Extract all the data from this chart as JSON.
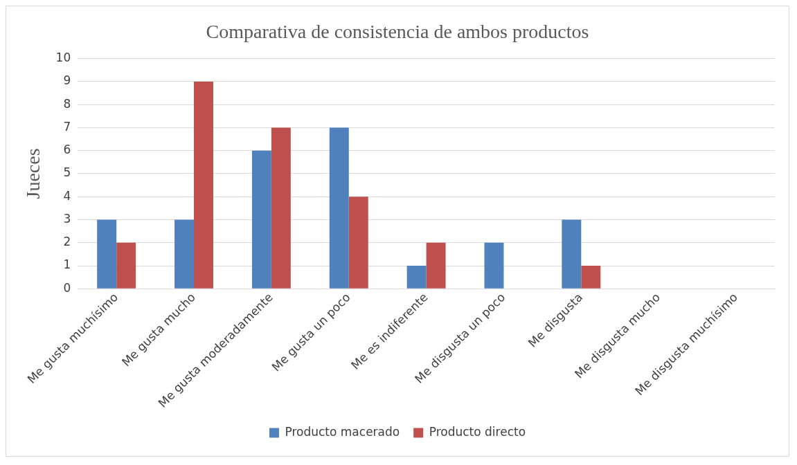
{
  "chart_data": {
    "type": "bar",
    "title": "Comparativa de consistencia de ambos productos",
    "ylabel": "Jueces",
    "categories": [
      "Me gusta muchísimo",
      "Me gusta mucho",
      "Me gusta moderadamente",
      "Me gusta un poco",
      "Me es indiferente",
      "Me disgusta un poco",
      "Me disgusta",
      "Me disgusta mucho",
      "Me disgusta muchísimo"
    ],
    "series": [
      {
        "name": "Producto macerado",
        "color": "#4f81bd",
        "values": [
          3,
          3,
          6,
          7,
          1,
          2,
          3,
          0,
          0
        ]
      },
      {
        "name": "Producto directo",
        "color": "#c0504d",
        "values": [
          2,
          9,
          7,
          4,
          2,
          0,
          1,
          0,
          0
        ]
      }
    ],
    "ylim": [
      0,
      10
    ],
    "yticks": [
      0,
      1,
      2,
      3,
      4,
      5,
      6,
      7,
      8,
      9,
      10
    ],
    "grid": "y",
    "legend": "bottom"
  }
}
